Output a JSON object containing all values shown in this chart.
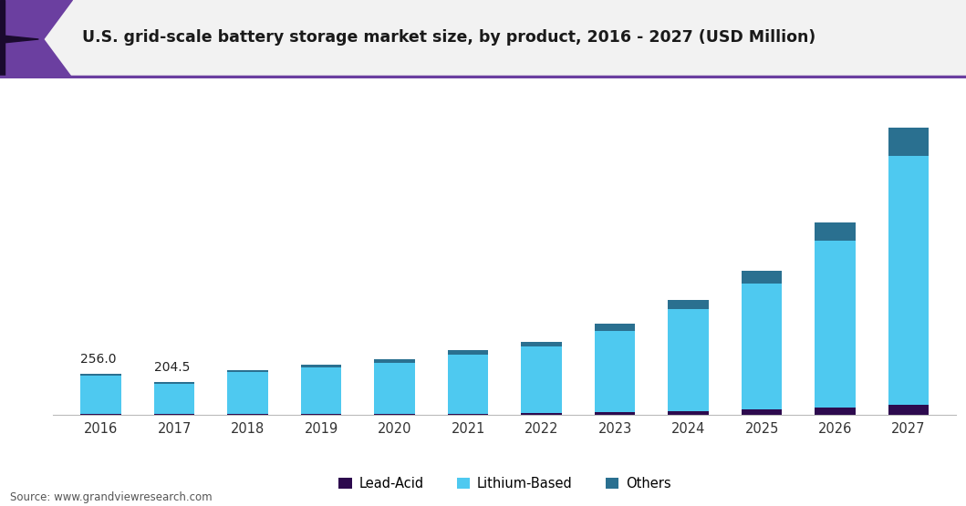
{
  "years": [
    "2016",
    "2017",
    "2018",
    "2019",
    "2020",
    "2021",
    "2022",
    "2023",
    "2024",
    "2025",
    "2026",
    "2027"
  ],
  "lead_acid": [
    4,
    4,
    5,
    6,
    7,
    8,
    10,
    15,
    22,
    32,
    45,
    65
  ],
  "lithium_based": [
    238,
    188,
    260,
    288,
    318,
    368,
    415,
    510,
    635,
    785,
    1040,
    1550
  ],
  "others": [
    14,
    12,
    16,
    18,
    21,
    25,
    32,
    43,
    58,
    80,
    115,
    175
  ],
  "colors": {
    "lead_acid": "#2d0a4e",
    "lithium_based": "#4ec9f0",
    "others": "#2a7090"
  },
  "title": "U.S. grid-scale battery storage market size, by product, 2016 - 2027 (USD Million)",
  "legend_labels": [
    "Lead-Acid",
    "Lithium-Based",
    "Others"
  ],
  "annotation_2016": "256.0",
  "annotation_2017": "204.5",
  "source_text": "Source: www.grandviewresearch.com",
  "background_color": "#ffffff",
  "bar_width": 0.55,
  "ylim": [
    0,
    2000
  ]
}
